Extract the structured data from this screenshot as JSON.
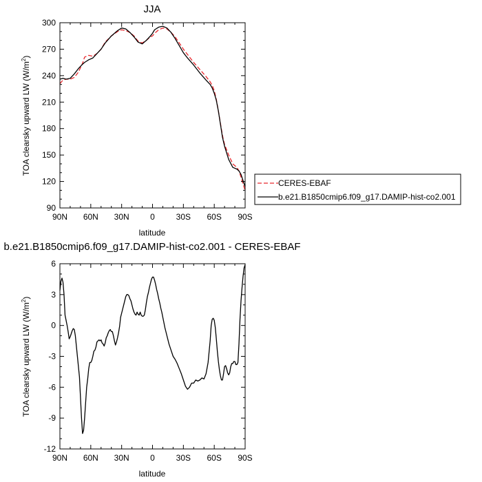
{
  "chart_data": [
    {
      "type": "line",
      "title": "JJA",
      "xlabel": "latitude",
      "ylabel_main": "TOA clearsky upward LW (W/m",
      "ylabel_sup": "2",
      "ylabel_close": ")",
      "xlim": [
        90,
        -90
      ],
      "ylim": [
        90,
        300
      ],
      "xticks": [
        {
          "value": 90,
          "label": "90N"
        },
        {
          "value": 60,
          "label": "60N"
        },
        {
          "value": 30,
          "label": "30N"
        },
        {
          "value": 0,
          "label": "0"
        },
        {
          "value": -30,
          "label": "30S"
        },
        {
          "value": -60,
          "label": "60S"
        },
        {
          "value": -90,
          "label": "90S"
        }
      ],
      "yticks": [
        90,
        120,
        150,
        180,
        210,
        240,
        270,
        300
      ],
      "legend_position": "right",
      "series": [
        {
          "name": "CERES-EBAF",
          "color": "#e8262b",
          "dash": "dashed",
          "x": [
            90,
            87,
            84,
            80,
            76,
            72,
            68,
            66,
            62,
            58,
            54,
            50,
            46,
            40,
            34,
            30,
            26,
            22,
            18,
            14,
            10,
            6,
            2,
            0,
            -2,
            -6,
            -10,
            -14,
            -18,
            -22,
            -26,
            -30,
            -34,
            -40,
            -46,
            -52,
            -56,
            -58,
            -60,
            -62,
            -64,
            -66,
            -68,
            -70,
            -74,
            -78,
            -82,
            -84,
            -86,
            -88,
            -90
          ],
          "y": [
            231,
            235,
            236,
            236,
            238,
            244,
            254,
            261,
            263,
            262,
            265,
            270,
            278,
            285,
            290,
            292,
            291,
            289,
            285,
            279,
            277,
            280,
            284,
            285,
            288,
            292,
            294,
            293,
            289,
            284,
            277,
            270,
            264,
            255,
            247,
            239,
            233,
            229,
            223,
            213,
            200,
            186,
            172,
            162,
            150,
            140,
            136,
            132,
            125,
            117,
            110
          ]
        },
        {
          "name": "b.e21.B1850cmip6.f09_g17.DAMIP-hist-co2.001",
          "color": "#000000",
          "dash": "solid",
          "x": [
            90,
            87,
            84,
            80,
            76,
            72,
            68,
            66,
            62,
            58,
            54,
            50,
            46,
            40,
            34,
            30,
            26,
            22,
            18,
            14,
            10,
            6,
            2,
            0,
            -2,
            -6,
            -10,
            -14,
            -18,
            -22,
            -26,
            -30,
            -34,
            -40,
            -46,
            -52,
            -56,
            -58,
            -60,
            -62,
            -64,
            -66,
            -68,
            -70,
            -74,
            -78,
            -82,
            -84,
            -86,
            -88,
            -90
          ],
          "y": [
            236,
            237,
            236,
            237,
            242,
            248,
            253,
            255,
            258,
            260,
            265,
            270,
            277,
            285,
            291,
            294,
            293,
            289,
            284,
            278,
            276,
            280,
            285,
            288,
            292,
            295,
            296,
            294,
            289,
            282,
            274,
            266,
            260,
            252,
            243,
            235,
            230,
            226,
            220,
            212,
            200,
            185,
            170,
            160,
            145,
            136,
            134,
            132,
            128,
            121,
            114
          ]
        }
      ]
    },
    {
      "type": "line",
      "title": "b.e21.B1850cmip6.f09_g17.DAMIP-hist-co2.001 - CERES-EBAF",
      "xlabel": "latitude",
      "ylabel_main": "TOA clearsky upward LW (W/m",
      "ylabel_sup": "2",
      "ylabel_close": ")",
      "xlim": [
        90,
        -90
      ],
      "ylim": [
        -12,
        6
      ],
      "xticks": [
        {
          "value": 90,
          "label": "90N"
        },
        {
          "value": 60,
          "label": "60N"
        },
        {
          "value": 30,
          "label": "30N"
        },
        {
          "value": 0,
          "label": "0"
        },
        {
          "value": -30,
          "label": "30S"
        },
        {
          "value": -60,
          "label": "60S"
        },
        {
          "value": -90,
          "label": "90S"
        }
      ],
      "yticks": [
        -12,
        -9,
        -6,
        -3,
        0,
        3,
        6
      ],
      "series": [
        {
          "color": "#000000",
          "dash": "solid",
          "x": [
            90,
            89,
            88,
            87,
            86,
            85,
            84,
            83,
            82,
            81,
            80,
            79,
            78,
            77,
            76,
            75,
            74,
            73,
            72,
            71,
            70,
            69,
            68,
            67,
            66,
            65,
            64,
            63,
            62,
            61,
            60,
            59,
            58,
            57,
            56,
            55,
            54,
            53,
            52,
            51,
            50,
            49,
            48,
            47,
            46,
            45,
            44,
            43,
            42,
            41,
            40,
            39,
            38,
            37,
            36,
            35,
            34,
            33,
            32,
            31,
            30,
            29,
            28,
            27,
            26,
            25,
            24,
            23,
            22,
            21,
            20,
            19,
            18,
            17,
            16,
            15,
            14,
            13,
            12,
            11,
            10,
            9,
            8,
            7,
            6,
            5,
            4,
            3,
            2,
            1,
            0,
            -1,
            -2,
            -3,
            -4,
            -5,
            -6,
            -7,
            -8,
            -9,
            -10,
            -11,
            -12,
            -13,
            -14,
            -15,
            -16,
            -18,
            -20,
            -22,
            -24,
            -26,
            -28,
            -30,
            -32,
            -34,
            -36,
            -38,
            -40,
            -42,
            -44,
            -46,
            -48,
            -50,
            -52,
            -54,
            -56,
            -57,
            -58,
            -59,
            -60,
            -61,
            -62,
            -63,
            -64,
            -65,
            -66,
            -67,
            -68,
            -69,
            -70,
            -71,
            -72,
            -73,
            -74,
            -75,
            -76,
            -77,
            -78,
            -79,
            -80,
            -81,
            -82,
            -83,
            -84,
            -85,
            -86,
            -87,
            -88,
            -89,
            -90
          ],
          "y": [
            3.4,
            4.3,
            4.6,
            4.2,
            3.0,
            1.0,
            0.5,
            0.0,
            -0.6,
            -1.3,
            -1.1,
            -0.8,
            -0.5,
            -0.3,
            -0.4,
            -1.0,
            -2.0,
            -3.0,
            -4.0,
            -5.0,
            -7.0,
            -9.0,
            -10.5,
            -10.2,
            -9.0,
            -7.5,
            -6.0,
            -5.2,
            -4.2,
            -3.6,
            -3.6,
            -3.4,
            -3.0,
            -2.5,
            -2.4,
            -2.1,
            -1.6,
            -1.5,
            -1.4,
            -1.5,
            -1.4,
            -1.7,
            -1.8,
            -2.0,
            -1.7,
            -1.2,
            -1.0,
            -0.7,
            -0.5,
            -0.4,
            -0.6,
            -0.6,
            -1.0,
            -1.5,
            -1.9,
            -1.6,
            -1.2,
            -0.7,
            -0.1,
            0.8,
            1.2,
            1.6,
            2.0,
            2.4,
            2.8,
            3.0,
            3.0,
            2.9,
            2.6,
            2.4,
            2.0,
            1.6,
            1.3,
            1.1,
            1.0,
            1.3,
            1.1,
            1.0,
            1.3,
            1.0,
            0.9,
            0.9,
            1.0,
            1.5,
            2.2,
            2.8,
            3.2,
            3.7,
            4.1,
            4.5,
            4.7,
            4.7,
            4.4,
            4.0,
            3.5,
            3.1,
            2.6,
            2.2,
            1.7,
            1.3,
            0.8,
            0.3,
            -0.2,
            -0.6,
            -1.0,
            -1.4,
            -1.8,
            -2.4,
            -3.0,
            -3.3,
            -3.7,
            -4.2,
            -4.7,
            -5.3,
            -5.9,
            -6.2,
            -6.0,
            -5.6,
            -5.6,
            -5.3,
            -5.4,
            -5.3,
            -5.1,
            -5.2,
            -4.7,
            -3.6,
            -1.5,
            0.0,
            0.6,
            0.7,
            0.5,
            -0.2,
            -1.3,
            -2.5,
            -3.5,
            -4.3,
            -4.9,
            -5.3,
            -5.3,
            -4.7,
            -4.0,
            -3.9,
            -4.2,
            -4.6,
            -4.8,
            -4.6,
            -4.0,
            -3.7,
            -3.7,
            -3.5,
            -3.5,
            -3.8,
            -3.8,
            -3.6,
            -1.8,
            0.6,
            2.4,
            3.7,
            4.8,
            5.6,
            5.9
          ]
        }
      ]
    }
  ]
}
